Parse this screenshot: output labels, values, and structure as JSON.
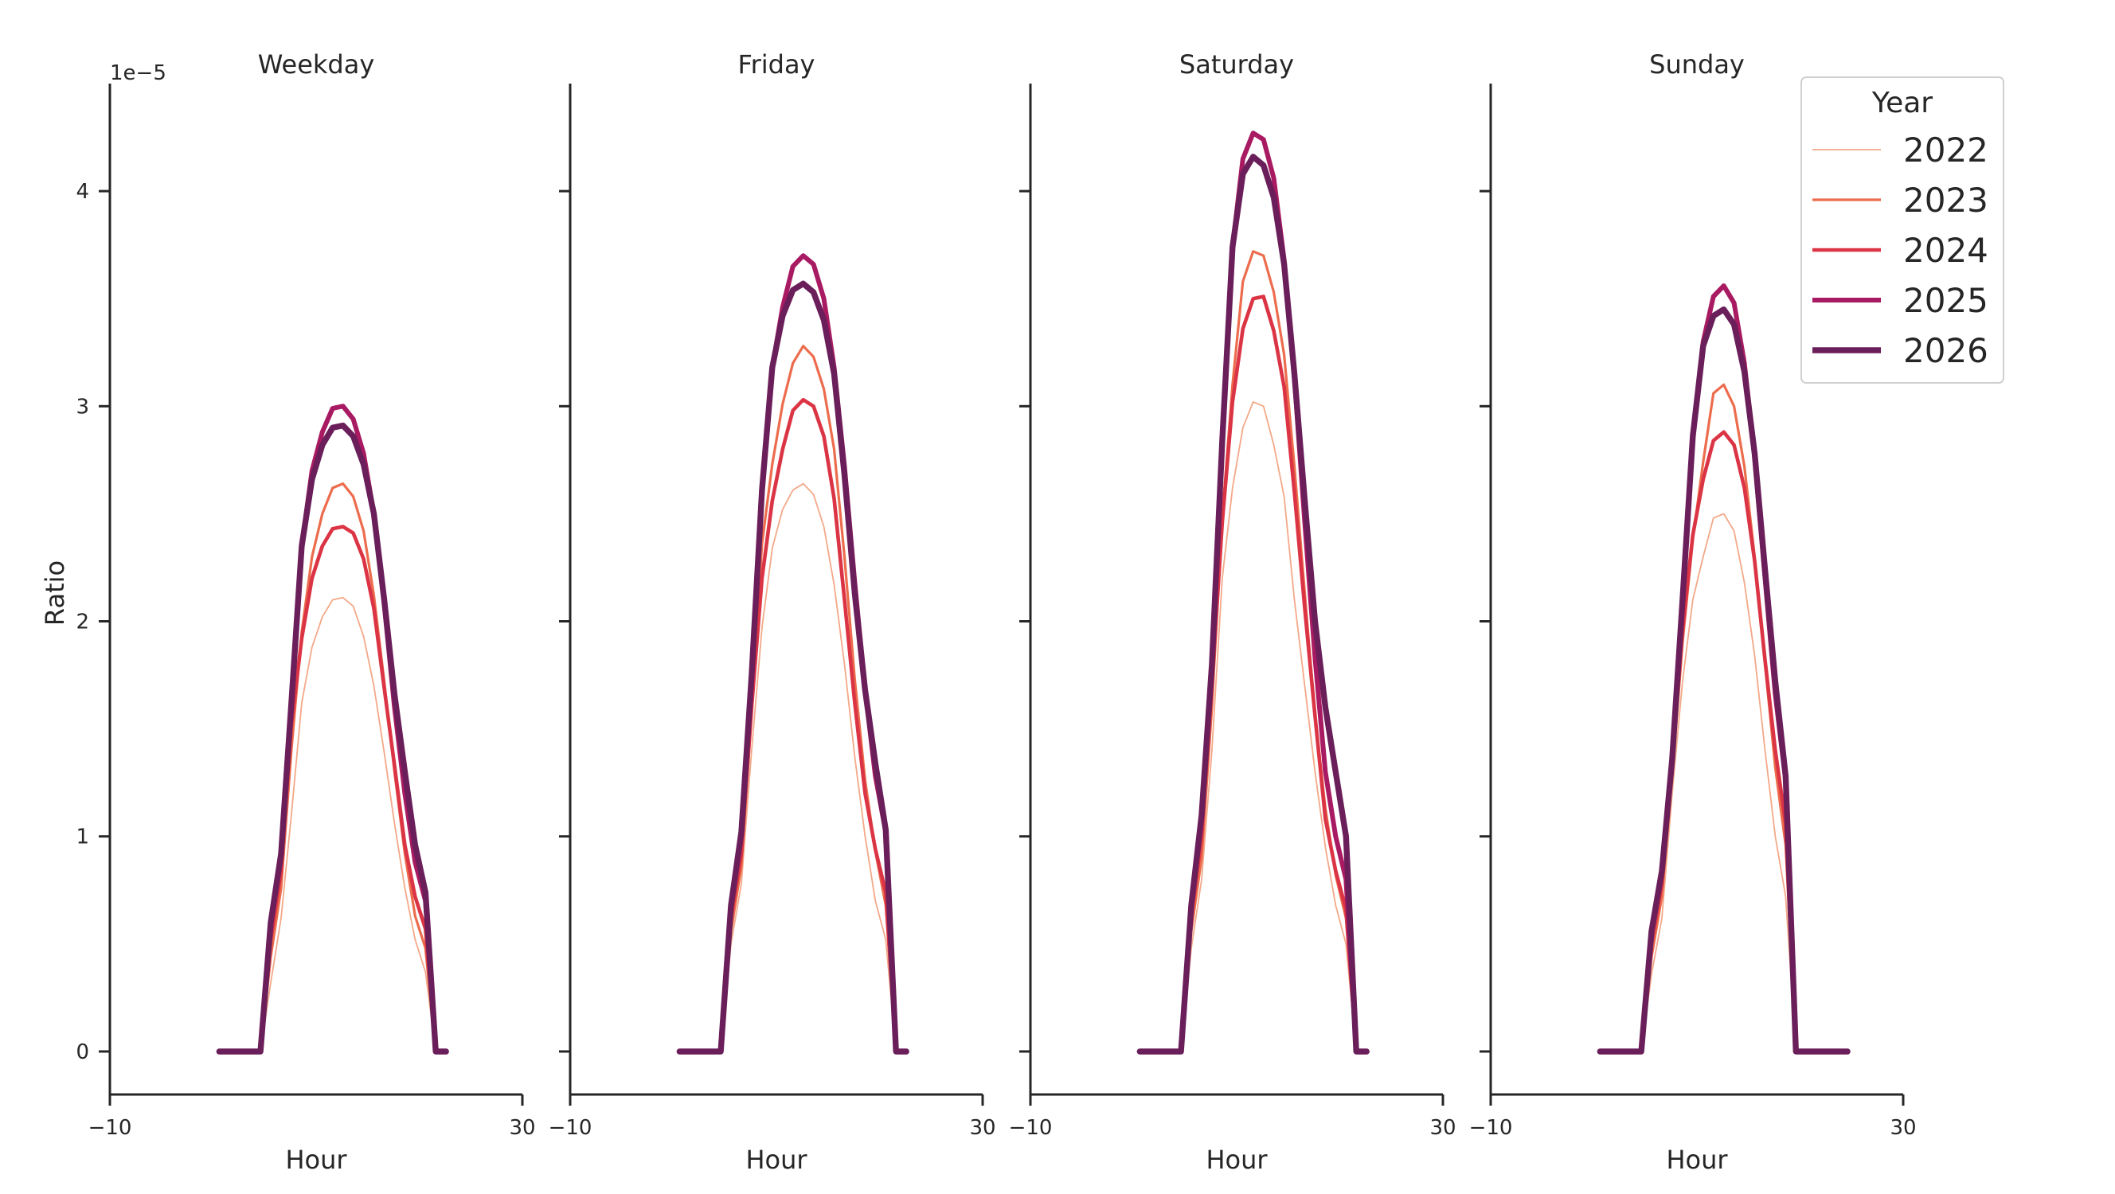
{
  "chart_data": {
    "type": "line",
    "ylabel": "Ratio",
    "xlabel": "Hour",
    "y_offset_text": "1e−5",
    "y_scale": 1e-05,
    "xlim": [
      -10,
      30
    ],
    "ylim": [
      -0.2,
      4.5
    ],
    "x_ticks": [
      -10,
      30
    ],
    "x_tick_labels": [
      "−10",
      "30"
    ],
    "y_ticks": [
      0,
      1,
      2,
      3,
      4
    ],
    "y_tick_labels": [
      "0",
      "1",
      "2",
      "3",
      "4"
    ],
    "legend": {
      "title": "Year",
      "position": "upper right",
      "entries": [
        "2022",
        "2023",
        "2024",
        "2025",
        "2026"
      ]
    },
    "series_colors": {
      "2022": "#f3a888",
      "2023": "#ec6c4d",
      "2024": "#db3445",
      "2025": "#a81b62",
      "2026": "#6a1e5a"
    },
    "series_widths": {
      "2022": 1.8,
      "2023": 3.2,
      "2024": 4.6,
      "2025": 6.0,
      "2026": 7.4
    },
    "x": [
      0,
      1,
      2,
      3,
      4,
      5,
      6,
      7,
      8,
      9,
      10,
      11,
      12,
      13,
      14,
      15,
      16,
      17,
      18,
      19,
      20,
      21,
      22,
      23,
      24
    ],
    "panels": [
      {
        "title": "Weekday",
        "series": [
          {
            "name": "2022",
            "values": [
              0,
              0,
              0,
              0,
              0,
              0.32,
              0.62,
              1.1,
              1.62,
              1.88,
              2.02,
              2.1,
              2.11,
              2.07,
              1.93,
              1.7,
              1.39,
              1.06,
              0.76,
              0.52,
              0.37,
              0,
              0,
              null,
              null
            ]
          },
          {
            "name": "2023",
            "values": [
              0,
              0,
              0,
              0,
              0,
              0.44,
              0.76,
              1.4,
              1.95,
              2.3,
              2.5,
              2.62,
              2.64,
              2.58,
              2.42,
              2.12,
              1.72,
              1.3,
              0.92,
              0.63,
              0.48,
              0,
              0,
              null,
              null
            ]
          },
          {
            "name": "2024",
            "values": [
              0,
              0,
              0,
              0,
              0,
              0.52,
              0.84,
              1.52,
              1.92,
              2.2,
              2.35,
              2.43,
              2.44,
              2.41,
              2.29,
              2.06,
              1.69,
              1.33,
              0.96,
              0.72,
              0.57,
              0,
              0,
              null,
              null
            ]
          },
          {
            "name": "2025",
            "values": [
              0,
              0,
              0,
              0,
              0,
              0.6,
              0.92,
              1.62,
              2.35,
              2.7,
              2.88,
              2.99,
              3.0,
              2.94,
              2.78,
              2.5,
              2.08,
              1.6,
              1.2,
              0.88,
              0.7,
              0,
              0,
              null,
              null
            ]
          },
          {
            "name": "2026",
            "values": [
              0,
              0,
              0,
              0,
              0,
              0.6,
              0.92,
              1.62,
              2.35,
              2.66,
              2.82,
              2.9,
              2.91,
              2.86,
              2.73,
              2.5,
              2.1,
              1.66,
              1.3,
              0.96,
              0.74,
              0,
              0,
              null,
              null
            ]
          }
        ]
      },
      {
        "title": "Friday",
        "series": [
          {
            "name": "2022",
            "values": [
              0,
              0,
              0,
              0,
              0,
              0.5,
              0.78,
              1.4,
              1.97,
              2.34,
              2.52,
              2.61,
              2.64,
              2.59,
              2.44,
              2.17,
              1.8,
              1.37,
              1.0,
              0.7,
              0.52,
              0,
              0,
              null,
              null
            ]
          },
          {
            "name": "2023",
            "values": [
              0,
              0,
              0,
              0,
              0,
              0.56,
              0.86,
              1.58,
              2.36,
              2.73,
              3.01,
              3.2,
              3.28,
              3.23,
              3.08,
              2.8,
              2.3,
              1.73,
              1.26,
              0.93,
              0.68,
              0,
              0,
              null,
              null
            ]
          },
          {
            "name": "2024",
            "values": [
              0,
              0,
              0,
              0,
              0,
              0.62,
              0.92,
              1.6,
              2.2,
              2.56,
              2.8,
              2.98,
              3.03,
              3.0,
              2.86,
              2.57,
              2.1,
              1.62,
              1.2,
              0.94,
              0.74,
              0,
              0,
              null,
              null
            ]
          },
          {
            "name": "2025",
            "values": [
              0,
              0,
              0,
              0,
              0,
              0.68,
              1.02,
              1.75,
              2.61,
              3.18,
              3.46,
              3.65,
              3.7,
              3.66,
              3.5,
              3.18,
              2.72,
              2.18,
              1.68,
              1.28,
              1.02,
              0,
              0,
              null,
              null
            ]
          },
          {
            "name": "2026",
            "values": [
              0,
              0,
              0,
              0,
              0,
              0.68,
              1.02,
              1.75,
              2.61,
              3.18,
              3.42,
              3.54,
              3.57,
              3.53,
              3.4,
              3.15,
              2.68,
              2.13,
              1.68,
              1.34,
              1.03,
              0,
              0,
              null,
              null
            ]
          }
        ]
      },
      {
        "title": "Saturday",
        "series": [
          {
            "name": "2022",
            "values": [
              0,
              0,
              0,
              0,
              0,
              0.48,
              0.8,
              1.4,
              2.2,
              2.62,
              2.9,
              3.02,
              3.0,
              2.82,
              2.58,
              2.1,
              1.7,
              1.3,
              0.95,
              0.68,
              0.5,
              0,
              0,
              null,
              null
            ]
          },
          {
            "name": "2023",
            "values": [
              0,
              0,
              0,
              0,
              0,
              0.56,
              0.9,
              1.6,
              2.48,
              3.1,
              3.58,
              3.72,
              3.7,
              3.53,
              3.24,
              2.72,
              2.13,
              1.56,
              1.13,
              0.82,
              0.62,
              0,
              0,
              null,
              null
            ]
          },
          {
            "name": "2024",
            "values": [
              0,
              0,
              0,
              0,
              0,
              0.62,
              1.0,
              1.7,
              2.46,
              3.02,
              3.36,
              3.5,
              3.51,
              3.35,
              3.09,
              2.6,
              2.06,
              1.56,
              1.08,
              0.84,
              0.66,
              0,
              0,
              null,
              null
            ]
          },
          {
            "name": "2025",
            "values": [
              0,
              0,
              0,
              0,
              0,
              0.68,
              1.1,
              1.8,
              2.84,
              3.74,
              4.15,
              4.27,
              4.24,
              4.06,
              3.68,
              3.13,
              2.46,
              1.83,
              1.3,
              1.0,
              0.8,
              0,
              0,
              null,
              null
            ]
          },
          {
            "name": "2026",
            "values": [
              0,
              0,
              0,
              0,
              0,
              0.68,
              1.1,
              1.8,
              2.84,
              3.74,
              4.08,
              4.16,
              4.12,
              3.97,
              3.66,
              3.15,
              2.56,
              2.0,
              1.6,
              1.3,
              1.0,
              0,
              0,
              null,
              null
            ]
          }
        ]
      },
      {
        "title": "Sunday",
        "series": [
          {
            "name": "2022",
            "values": [
              0,
              0,
              0,
              0,
              0,
              0.36,
              0.62,
              1.2,
              1.72,
              2.1,
              2.3,
              2.48,
              2.5,
              2.42,
              2.18,
              1.84,
              1.4,
              1.0,
              0.72,
              0,
              0,
              0,
              0,
              0,
              0
            ]
          },
          {
            "name": "2023",
            "values": [
              0,
              0,
              0,
              0,
              0,
              0.44,
              0.72,
              1.28,
              1.9,
              2.38,
              2.74,
              3.06,
              3.1,
              3.0,
              2.72,
              2.3,
              1.8,
              1.32,
              0.96,
              0,
              0,
              0,
              0,
              0,
              0
            ]
          },
          {
            "name": "2024",
            "values": [
              0,
              0,
              0,
              0,
              0,
              0.5,
              0.78,
              1.34,
              1.96,
              2.4,
              2.66,
              2.84,
              2.88,
              2.82,
              2.62,
              2.28,
              1.82,
              1.4,
              1.06,
              0,
              0,
              0,
              0,
              0,
              0
            ]
          },
          {
            "name": "2025",
            "values": [
              0,
              0,
              0,
              0,
              0,
              0.56,
              0.84,
              1.36,
              2.1,
              2.86,
              3.3,
              3.51,
              3.56,
              3.48,
              3.2,
              2.76,
              2.2,
              1.66,
              1.26,
              0,
              0,
              0,
              0,
              0,
              0
            ]
          },
          {
            "name": "2026",
            "values": [
              0,
              0,
              0,
              0,
              0,
              0.56,
              0.84,
              1.36,
              2.1,
              2.86,
              3.28,
              3.42,
              3.45,
              3.38,
              3.16,
              2.78,
              2.24,
              1.72,
              1.28,
              0,
              0,
              0,
              0,
              0,
              0
            ]
          }
        ]
      }
    ]
  }
}
